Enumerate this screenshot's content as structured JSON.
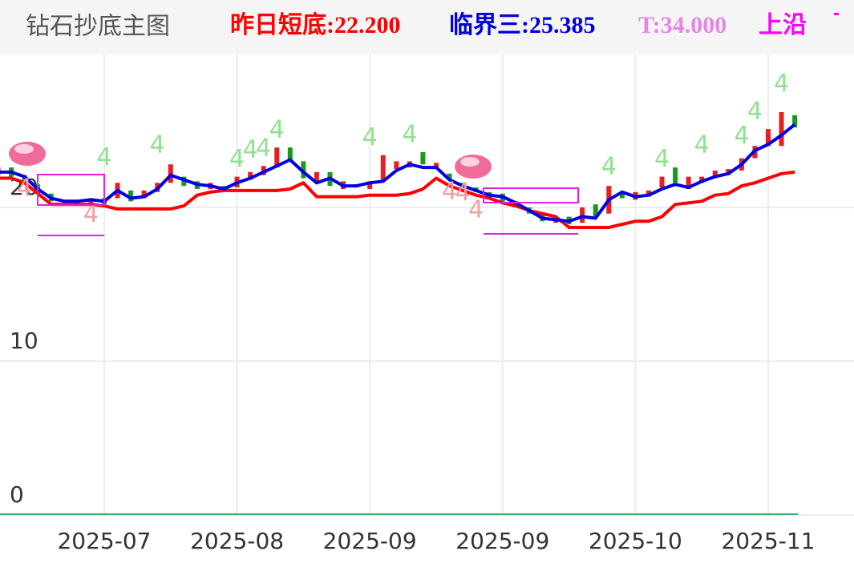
{
  "header": {
    "title": "钻石抄底主图",
    "items": [
      {
        "text": "昨日短底:22.200",
        "color": "#ff0000"
      },
      {
        "text": "临界三:25.385",
        "color": "#0000e0"
      },
      {
        "text": "T:34.000",
        "color": "#e685e6"
      },
      {
        "text": "上沿",
        "color": "#ff00ff"
      }
    ]
  },
  "chart_data": {
    "type": "candlestick",
    "categories": [
      null,
      null,
      null,
      null,
      null,
      null,
      null,
      null,
      "2025-07",
      null,
      null,
      null,
      null,
      null,
      null,
      null,
      null,
      null,
      "2025-08",
      null,
      null,
      null,
      null,
      null,
      null,
      null,
      null,
      null,
      "2025-09",
      null,
      null,
      null,
      null,
      null,
      null,
      null,
      null,
      null,
      "2025-09",
      null,
      null,
      null,
      null,
      null,
      null,
      null,
      null,
      null,
      "2025-10",
      null,
      null,
      null,
      null,
      null,
      null,
      null,
      null,
      null,
      "2025-11",
      null,
      null
    ],
    "ylim": [
      0,
      30
    ],
    "yticks": [
      0,
      10,
      20
    ],
    "grid": true,
    "open": [
      22.1,
      22.6,
      22.1,
      21.5,
      20.9,
      20.4,
      20.5,
      20.3,
      20.6,
      20.6,
      21.1,
      20.6,
      21.0,
      21.6,
      22.0,
      21.7,
      21.2,
      21.4,
      21.3,
      21.8,
      22.1,
      22.6,
      23.9,
      23.0,
      21.6,
      22.3,
      21.2,
      21.5,
      21.2,
      21.8,
      22.5,
      22.6,
      23.6,
      22.5,
      22.2,
      21.6,
      21.3,
      21.0,
      20.9,
      20.4,
      20.0,
      19.6,
      19.0,
      19.4,
      19.0,
      20.2,
      19.6,
      21.0,
      20.5,
      20.7,
      21.3,
      22.6,
      21.2,
      21.6,
      21.9,
      22.1,
      22.4,
      23.2,
      24.0,
      24.0,
      26.0
    ],
    "close": [
      22.6,
      22.0,
      21.5,
      20.9,
      20.4,
      20.5,
      20.3,
      20.6,
      20.2,
      21.6,
      20.4,
      21.1,
      21.6,
      22.8,
      21.4,
      21.2,
      21.6,
      21.1,
      22.0,
      22.3,
      22.7,
      23.9,
      23.0,
      21.9,
      22.3,
      21.4,
      21.7,
      21.3,
      21.7,
      23.4,
      23.0,
      23.0,
      22.8,
      22.9,
      21.8,
      21.3,
      21.0,
      20.6,
      20.4,
      20.0,
      19.6,
      19.1,
      19.4,
      18.9,
      20.0,
      19.4,
      21.4,
      20.6,
      21.0,
      21.1,
      22.0,
      21.6,
      22.0,
      22.0,
      22.4,
      22.5,
      23.2,
      24.0,
      25.1,
      26.2,
      25.2
    ],
    "up_color": "#e62020",
    "down_color": "#1a9a1a",
    "series": [
      {
        "color": "#ff0000",
        "values": [
          21.9,
          21.9,
          21.6,
          20.9,
          20.2,
          20.2,
          20.2,
          20.2,
          20.1,
          19.9,
          19.9,
          19.9,
          19.9,
          19.9,
          20.1,
          20.8,
          21.0,
          21.1,
          21.1,
          21.1,
          21.1,
          21.1,
          21.2,
          21.6,
          20.7,
          20.7,
          20.7,
          20.7,
          20.8,
          20.8,
          20.8,
          20.9,
          21.2,
          21.9,
          21.4,
          21.1,
          20.8,
          20.6,
          20.3,
          20.1,
          19.8,
          19.6,
          19.4,
          18.7,
          18.7,
          18.7,
          18.7,
          18.9,
          19.1,
          19.1,
          19.4,
          20.2,
          20.3,
          20.4,
          20.8,
          20.9,
          21.4,
          21.6,
          21.9,
          22.2,
          22.3
        ]
      },
      {
        "color": "#0000e6",
        "values": [
          22.3,
          22.3,
          22.0,
          21.2,
          20.6,
          20.4,
          20.4,
          20.5,
          20.4,
          21.1,
          20.6,
          20.7,
          21.2,
          22.1,
          21.8,
          21.5,
          21.4,
          21.2,
          21.6,
          21.9,
          22.3,
          22.7,
          23.1,
          22.3,
          21.6,
          21.9,
          21.4,
          21.4,
          21.6,
          21.7,
          22.4,
          22.8,
          22.6,
          22.6,
          21.8,
          21.4,
          21.1,
          20.8,
          20.7,
          20.3,
          19.8,
          19.3,
          19.2,
          19.1,
          19.4,
          19.3,
          20.5,
          21.0,
          20.7,
          20.8,
          21.2,
          21.5,
          21.3,
          21.7,
          22.0,
          22.2,
          22.8,
          23.7,
          24.1,
          24.7,
          25.4
        ]
      }
    ],
    "signals": [
      {
        "index": 8,
        "value": 23.2,
        "label": "4",
        "color": "#90e090"
      },
      {
        "index": 12,
        "value": 24.0,
        "label": "4",
        "color": "#90e090"
      },
      {
        "index": 18,
        "value": 23.1,
        "label": "4",
        "color": "#90e090"
      },
      {
        "index": 19,
        "value": 23.7,
        "label": "4",
        "color": "#90e090"
      },
      {
        "index": 20,
        "value": 23.8,
        "label": "4",
        "color": "#90e090"
      },
      {
        "index": 21,
        "value": 25.0,
        "label": "4",
        "color": "#90e090"
      },
      {
        "index": 28,
        "value": 24.5,
        "label": "4",
        "color": "#90e090"
      },
      {
        "index": 31,
        "value": 24.7,
        "label": "4",
        "color": "#90e090"
      },
      {
        "index": 46,
        "value": 22.6,
        "label": "4",
        "color": "#90e090"
      },
      {
        "index": 50,
        "value": 23.1,
        "label": "4",
        "color": "#90e090"
      },
      {
        "index": 53,
        "value": 24.0,
        "label": "4",
        "color": "#90e090"
      },
      {
        "index": 56,
        "value": 24.6,
        "label": "4",
        "color": "#90e090"
      },
      {
        "index": 57,
        "value": 26.2,
        "label": "4",
        "color": "#90e090"
      },
      {
        "index": 59,
        "value": 28.0,
        "label": "4",
        "color": "#90e090"
      },
      {
        "index": 2,
        "value": 21.2,
        "label": "4",
        "color": "#f0a0a0"
      },
      {
        "index": 7,
        "value": 19.5,
        "label": "4",
        "color": "#f0a0a0"
      },
      {
        "index": 34,
        "value": 21.0,
        "label": "4",
        "color": "#f0a0a0"
      },
      {
        "index": 35,
        "value": 20.9,
        "label": "4",
        "color": "#f0a0a0"
      },
      {
        "index": 36,
        "value": 19.8,
        "label": "4",
        "color": "#f0a0a0"
      }
    ]
  }
}
